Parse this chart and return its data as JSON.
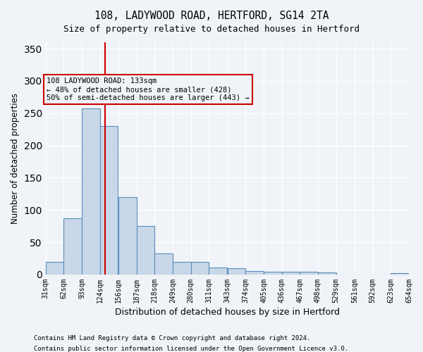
{
  "title1": "108, LADYWOOD ROAD, HERTFORD, SG14 2TA",
  "title2": "Size of property relative to detached houses in Hertford",
  "xlabel": "Distribution of detached houses by size in Hertford",
  "ylabel": "Number of detached properties",
  "footnote1": "Contains HM Land Registry data © Crown copyright and database right 2024.",
  "footnote2": "Contains public sector information licensed under the Open Government Licence v3.0.",
  "bar_color": "#c8d8e8",
  "bar_edge_color": "#5b8db8",
  "property_size": 133,
  "property_line_color": "#cc0000",
  "annotation_text": "108 LADYWOOD ROAD: 133sqm\n← 48% of detached houses are smaller (428)\n50% of semi-detached houses are larger (443) →",
  "annotation_box_color": "#cc0000",
  "ylim": [
    0,
    360
  ],
  "yticks": [
    0,
    50,
    100,
    150,
    200,
    250,
    300,
    350
  ],
  "bin_edges": [
    31,
    62,
    93,
    124,
    156,
    187,
    218,
    249,
    280,
    311,
    343,
    374,
    405,
    436,
    467,
    498,
    529,
    561,
    592,
    623,
    654
  ],
  "bin_labels": [
    "31sqm",
    "62sqm",
    "93sqm",
    "124sqm",
    "156sqm",
    "187sqm",
    "218sqm",
    "249sqm",
    "280sqm",
    "311sqm",
    "343sqm",
    "374sqm",
    "405sqm",
    "436sqm",
    "467sqm",
    "498sqm",
    "529sqm",
    "561sqm",
    "592sqm",
    "623sqm",
    "654sqm"
  ],
  "counts": [
    20,
    87,
    257,
    230,
    120,
    75,
    33,
    20,
    20,
    11,
    10,
    5,
    4,
    4,
    4,
    3,
    0,
    0,
    0,
    2
  ],
  "background_color": "#f0f4f8",
  "grid_color": "#ffffff"
}
